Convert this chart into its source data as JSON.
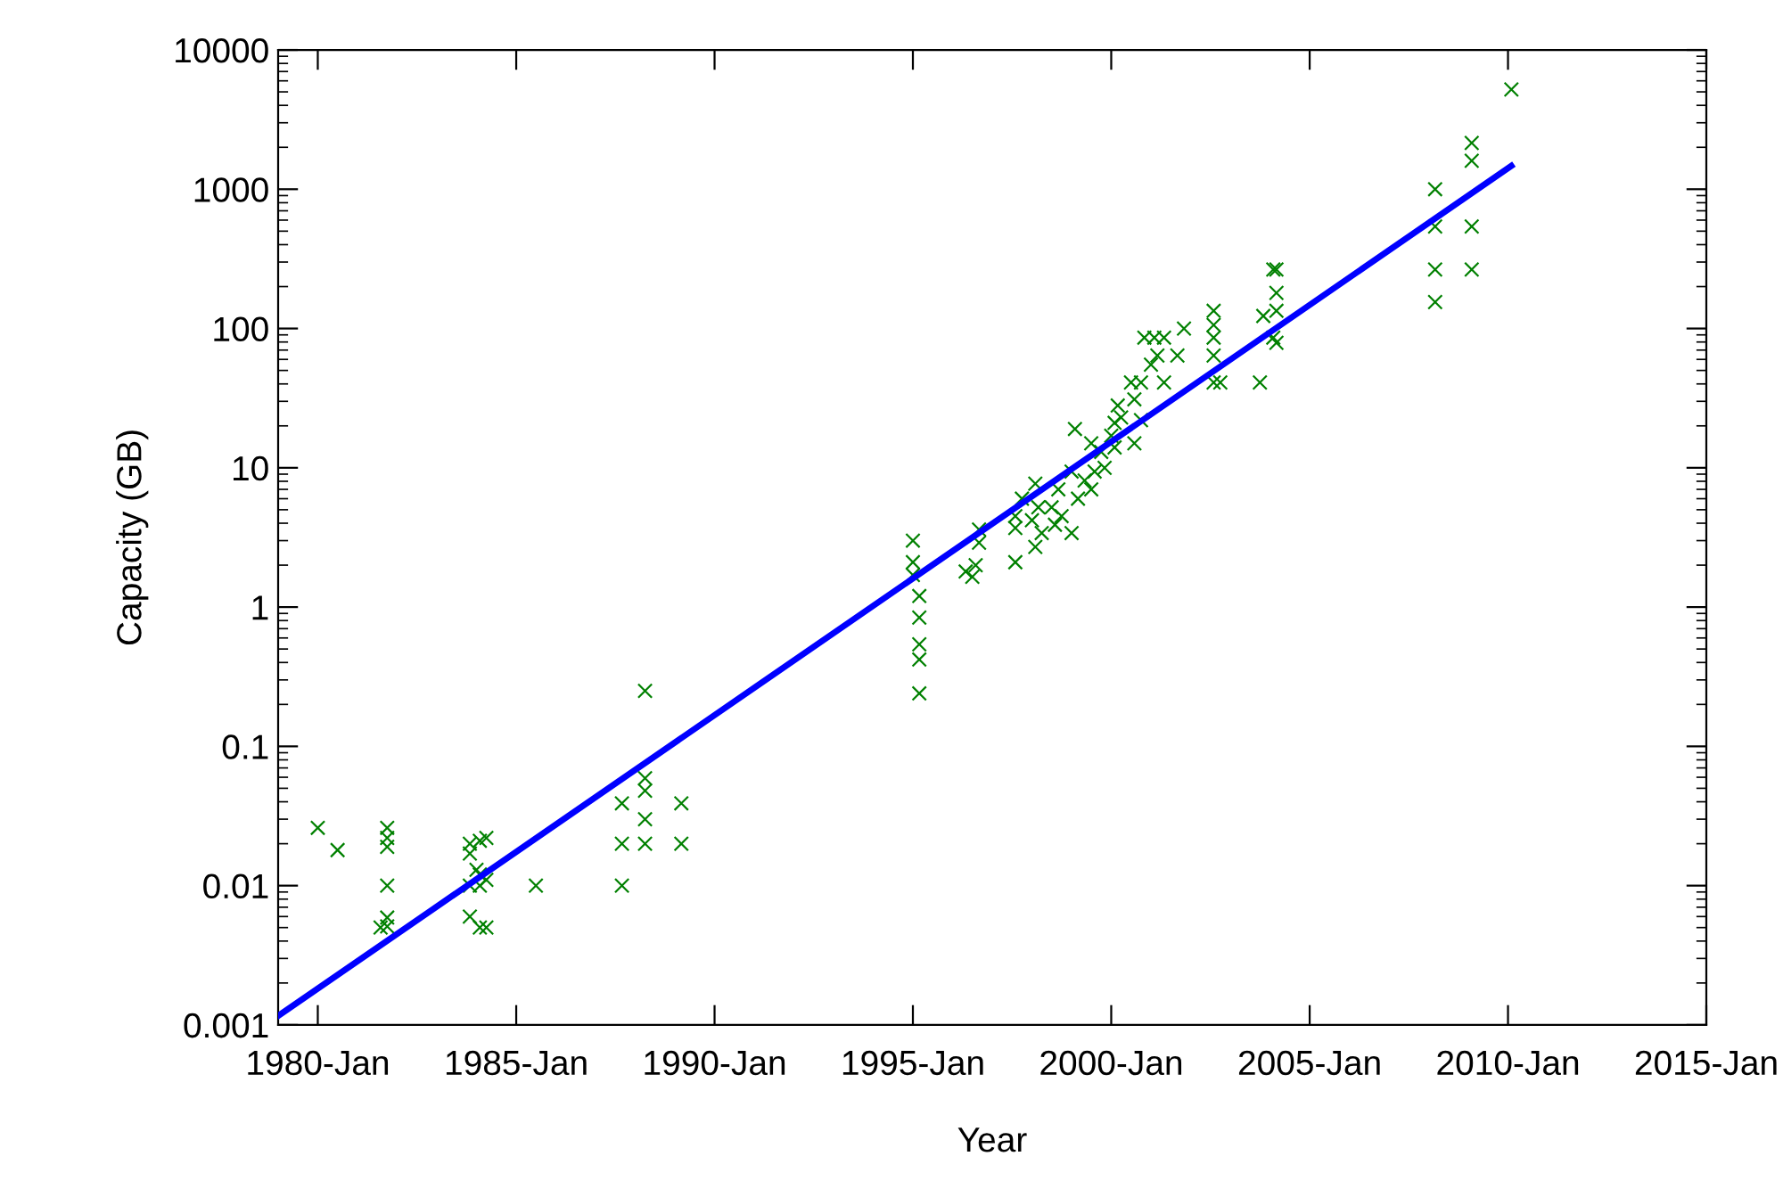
{
  "chart_data": {
    "type": "scatter",
    "xlabel": "Year",
    "ylabel": "Capacity (GB)",
    "log": "y",
    "grid": false,
    "legend": false,
    "marker": "cross",
    "xlim": [
      "1979-01",
      "2015-01"
    ],
    "xticks": [
      {
        "value": "1980-01",
        "label": "1980-Jan"
      },
      {
        "value": "1985-01",
        "label": "1985-Jan"
      },
      {
        "value": "1990-01",
        "label": "1990-Jan"
      },
      {
        "value": "1995-01",
        "label": "1995-Jan"
      },
      {
        "value": "2000-01",
        "label": "2000-Jan"
      },
      {
        "value": "2005-01",
        "label": "2005-Jan"
      },
      {
        "value": "2010-01",
        "label": "2010-Jan"
      },
      {
        "value": "2015-01",
        "label": "2015-Jan"
      }
    ],
    "ylim": [
      0.001,
      10000
    ],
    "yticks": [
      0.001,
      0.01,
      0.1,
      1,
      10,
      100,
      1000,
      10000
    ],
    "series": [
      {
        "color": "#008000",
        "x": [
          "1980-01",
          "1980-07",
          "1981-10",
          "1981-10",
          "1981-10",
          "1981-10",
          "1981-10",
          "1981-10",
          "1981-08",
          "1983-11",
          "1983-11",
          "1983-11",
          "1983-11",
          "1984-01",
          "1984-02",
          "1984-02",
          "1984-02",
          "1984-02",
          "1984-04",
          "1984-04",
          "1984-04",
          "1985-07",
          "1987-09",
          "1987-09",
          "1987-09",
          "1988-04",
          "1988-04",
          "1988-04",
          "1988-04",
          "1988-04",
          "1989-03",
          "1989-03",
          "1995-01",
          "1995-01",
          "1995-01",
          "1995-03",
          "1995-03",
          "1995-03",
          "1995-03",
          "1995-03",
          "1996-05",
          "1996-07",
          "1996-08",
          "1996-09",
          "1996-09",
          "1997-08",
          "1997-08",
          "1997-08",
          "1997-10",
          "1998-02",
          "1998-02",
          "1998-01",
          "1998-03",
          "1998-04",
          "1998-07",
          "1998-08",
          "1998-09",
          "1998-10",
          "1999-01",
          "1999-01",
          "1999-02",
          "1999-03",
          "1999-05",
          "1999-07",
          "1999-07",
          "1999-08",
          "1999-10",
          "1999-11",
          "2000-01",
          "2000-02",
          "2000-02",
          "2000-03",
          "2000-04",
          "2000-07",
          "2000-08",
          "2000-08",
          "2000-10",
          "2000-10",
          "2000-11",
          "2001-01",
          "2001-02",
          "2001-03",
          "2001-05",
          "2001-05",
          "2001-09",
          "2001-11",
          "2002-08",
          "2002-08",
          "2002-08",
          "2002-08",
          "2002-08",
          "2002-10",
          "2003-10",
          "2003-11",
          "2004-02",
          "2004-02",
          "2004-03",
          "2004-03",
          "2004-03",
          "2004-03",
          "2008-03",
          "2008-03",
          "2008-03",
          "2008-03",
          "2009-02",
          "2009-02",
          "2009-02",
          "2009-02",
          "2010-02"
        ],
        "values": [
          0.026,
          0.018,
          0.026,
          0.022,
          0.019,
          0.01,
          0.0059,
          0.0051,
          0.005,
          0.02,
          0.017,
          0.01,
          0.006,
          0.013,
          0.021,
          0.01,
          0.005,
          0.012,
          0.022,
          0.011,
          0.005,
          0.01,
          0.039,
          0.02,
          0.01,
          0.25,
          0.059,
          0.048,
          0.03,
          0.02,
          0.039,
          0.02,
          3.0,
          2.1,
          1.7,
          1.2,
          0.84,
          0.54,
          0.42,
          0.24,
          1.8,
          1.65,
          2.0,
          2.9,
          3.6,
          2.1,
          3.7,
          4.5,
          6.0,
          7.7,
          2.7,
          4.2,
          5.2,
          3.4,
          5.2,
          3.9,
          7.0,
          4.5,
          9.4,
          3.4,
          19,
          6.0,
          8.1,
          15,
          7.0,
          9.4,
          13,
          10,
          17,
          21,
          14,
          28,
          23,
          41,
          31,
          15,
          41,
          22,
          86,
          55,
          86,
          64,
          86,
          41,
          64,
          100,
          134,
          106,
          86,
          64,
          41,
          41,
          41,
          123,
          86,
          265,
          134,
          180,
          265,
          79,
          1000,
          540,
          265,
          155,
          1600,
          2150,
          540,
          265,
          5200
        ]
      },
      {
        "type": "line",
        "color": "#0000ff",
        "marker": "none",
        "x": [
          "1979-01",
          "2010-02"
        ],
        "values": [
          0.00116,
          1470
        ]
      }
    ]
  }
}
